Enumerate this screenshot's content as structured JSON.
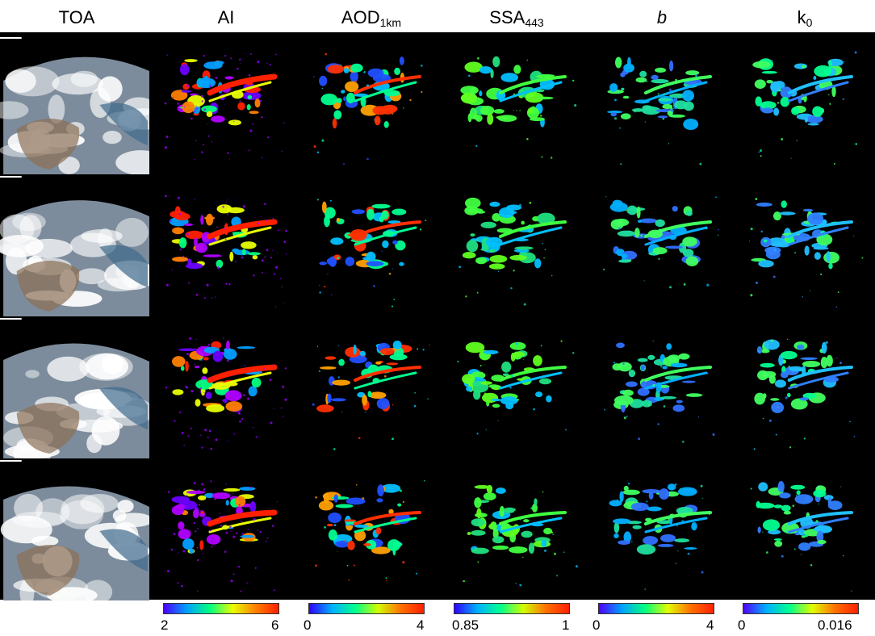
{
  "columns": [
    {
      "key": "toa",
      "label": "TOA",
      "sub": ""
    },
    {
      "key": "ai",
      "label": "AI",
      "sub": ""
    },
    {
      "key": "aod",
      "label": "AOD",
      "sub": "1km"
    },
    {
      "key": "ssa",
      "label": "SSA",
      "sub": "443"
    },
    {
      "key": "b",
      "label": "b",
      "sub": ""
    },
    {
      "key": "k0",
      "label": "k",
      "sub": "0"
    }
  ],
  "colorbars": [
    {
      "column": "ai",
      "min": "2",
      "max": "6",
      "scheme": "jet-like",
      "colors": [
        "#4b00ff",
        "#00a0ff",
        "#00ff80",
        "#e8ff00",
        "#ff8000",
        "#ff2000"
      ]
    },
    {
      "column": "aod",
      "min": "0",
      "max": "4",
      "scheme": "jet-like",
      "colors": [
        "#3000ff",
        "#00b0ff",
        "#00ff90",
        "#d0ff00",
        "#ff7000",
        "#ff2000"
      ]
    },
    {
      "column": "ssa",
      "min": "0.85",
      "max": "1",
      "scheme": "jet-like",
      "colors": [
        "#3000ff",
        "#00b0ff",
        "#00ff90",
        "#d0ff00",
        "#ff7000",
        "#ff2000"
      ]
    },
    {
      "column": "b",
      "min": "0",
      "max": "4",
      "scheme": "jet-like",
      "colors": [
        "#5000ff",
        "#00a0ff",
        "#00ff80",
        "#e0ff00",
        "#ff7000",
        "#ff2000"
      ]
    },
    {
      "column": "k0",
      "min": "0",
      "max": "0.016",
      "scheme": "jet-like",
      "colors": [
        "#5000ff",
        "#00b0ff",
        "#00ff90",
        "#e0ff00",
        "#ff7000",
        "#ff2000"
      ]
    }
  ],
  "rows": 4,
  "background": "#000000"
}
